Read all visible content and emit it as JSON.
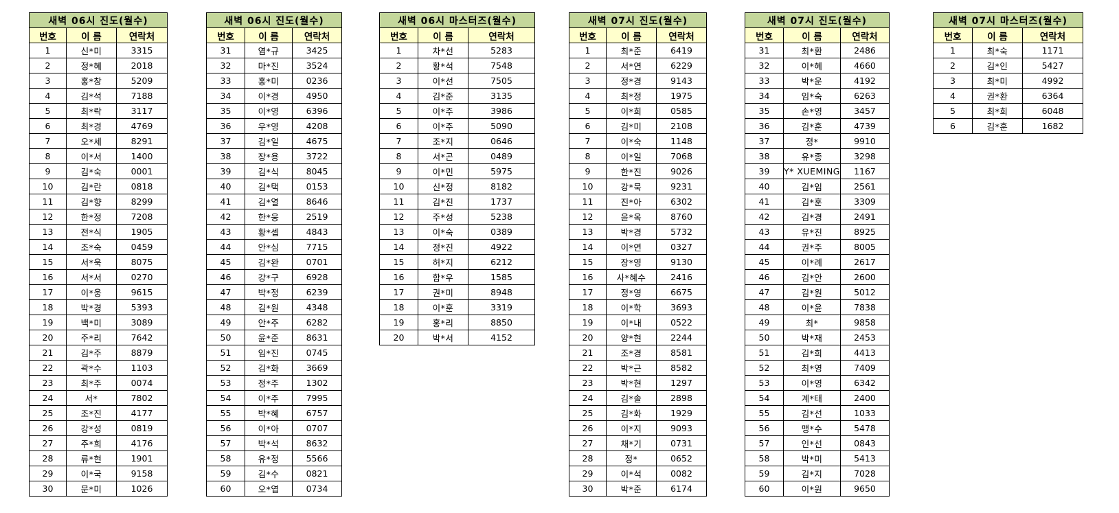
{
  "colors": {
    "title_bg": "#c4d79b",
    "header_bg": "#ffffcc",
    "border": "#000000"
  },
  "columns": [
    "번호",
    "이 름",
    "연락처"
  ],
  "tables": [
    {
      "title": "새벽 06시 진도(월수)",
      "rows": [
        [
          "1",
          "신*미",
          "3315"
        ],
        [
          "2",
          "정*혜",
          "2018"
        ],
        [
          "3",
          "홍*창",
          "5209"
        ],
        [
          "4",
          "김*석",
          "7188"
        ],
        [
          "5",
          "최*락",
          "3117"
        ],
        [
          "6",
          "최*경",
          "4769"
        ],
        [
          "7",
          "오*세",
          "8291"
        ],
        [
          "8",
          "이*서",
          "1400"
        ],
        [
          "9",
          "김*숙",
          "0001"
        ],
        [
          "10",
          "김*란",
          "0818"
        ],
        [
          "11",
          "김*향",
          "8299"
        ],
        [
          "12",
          "한*정",
          "7208"
        ],
        [
          "13",
          "전*식",
          "1905"
        ],
        [
          "14",
          "조*숙",
          "0459"
        ],
        [
          "15",
          "서*욱",
          "8075"
        ],
        [
          "16",
          "서*서",
          "0270"
        ],
        [
          "17",
          "이*웅",
          "9615"
        ],
        [
          "18",
          "박*경",
          "5393"
        ],
        [
          "19",
          "백*미",
          "3089"
        ],
        [
          "20",
          "주*리",
          "7642"
        ],
        [
          "21",
          "김*주",
          "8879"
        ],
        [
          "22",
          "곽*수",
          "1103"
        ],
        [
          "23",
          "최*주",
          "0074"
        ],
        [
          "24",
          "서*",
          "7802"
        ],
        [
          "25",
          "조*진",
          "4177"
        ],
        [
          "26",
          "강*성",
          "0819"
        ],
        [
          "27",
          "주*희",
          "4176"
        ],
        [
          "28",
          "류*현",
          "1901"
        ],
        [
          "29",
          "이*국",
          "9158"
        ],
        [
          "30",
          "문*미",
          "1026"
        ]
      ]
    },
    {
      "title": "새벽 06시 진도(월수)",
      "rows": [
        [
          "31",
          "염*규",
          "3425"
        ],
        [
          "32",
          "마*진",
          "3524"
        ],
        [
          "33",
          "홍*미",
          "0236"
        ],
        [
          "34",
          "이*경",
          "4950"
        ],
        [
          "35",
          "이*영",
          "6396"
        ],
        [
          "36",
          "우*영",
          "4208"
        ],
        [
          "37",
          "김*일",
          "4675"
        ],
        [
          "38",
          "장*용",
          "3722"
        ],
        [
          "39",
          "김*식",
          "8045"
        ],
        [
          "40",
          "김*택",
          "0153"
        ],
        [
          "41",
          "김*열",
          "8646"
        ],
        [
          "42",
          "한*웅",
          "2519"
        ],
        [
          "43",
          "황*셉",
          "4843"
        ],
        [
          "44",
          "안*심",
          "7715"
        ],
        [
          "45",
          "김*완",
          "0701"
        ],
        [
          "46",
          "강*구",
          "6928"
        ],
        [
          "47",
          "박*정",
          "6239"
        ],
        [
          "48",
          "김*원",
          "4348"
        ],
        [
          "49",
          "안*주",
          "6282"
        ],
        [
          "50",
          "윤*준",
          "8631"
        ],
        [
          "51",
          "임*진",
          "0745"
        ],
        [
          "52",
          "김*화",
          "3669"
        ],
        [
          "53",
          "정*주",
          "1302"
        ],
        [
          "54",
          "이*주",
          "7995"
        ],
        [
          "55",
          "박*혜",
          "6757"
        ],
        [
          "56",
          "이*아",
          "0707"
        ],
        [
          "57",
          "박*석",
          "8632"
        ],
        [
          "58",
          "유*정",
          "5566"
        ],
        [
          "59",
          "김*수",
          "0821"
        ],
        [
          "60",
          "오*엽",
          "0734"
        ]
      ]
    },
    {
      "title": "새벽 06시 마스터즈(월수)",
      "rows": [
        [
          "1",
          "차*선",
          "5283"
        ],
        [
          "2",
          "황*석",
          "7548"
        ],
        [
          "3",
          "이*선",
          "7505"
        ],
        [
          "4",
          "김*준",
          "3135"
        ],
        [
          "5",
          "이*주",
          "3986"
        ],
        [
          "6",
          "이*주",
          "5090"
        ],
        [
          "7",
          "조*지",
          "0646"
        ],
        [
          "8",
          "서*곤",
          "0489"
        ],
        [
          "9",
          "이*민",
          "5975"
        ],
        [
          "10",
          "신*정",
          "8182"
        ],
        [
          "11",
          "김*진",
          "1737"
        ],
        [
          "12",
          "주*성",
          "5238"
        ],
        [
          "13",
          "이*숙",
          "0389"
        ],
        [
          "14",
          "정*진",
          "4922"
        ],
        [
          "15",
          "허*지",
          "6212"
        ],
        [
          "16",
          "함*우",
          "1585"
        ],
        [
          "17",
          "권*미",
          "8948"
        ],
        [
          "18",
          "이*훈",
          "3319"
        ],
        [
          "19",
          "홍*리",
          "8850"
        ],
        [
          "20",
          "박*서",
          "4152"
        ]
      ]
    },
    {
      "title": "새벽 07시 진도(월수)",
      "rows": [
        [
          "1",
          "최*준",
          "6419"
        ],
        [
          "2",
          "서*연",
          "6229"
        ],
        [
          "3",
          "정*경",
          "9143"
        ],
        [
          "4",
          "최*정",
          "1975"
        ],
        [
          "5",
          "이*희",
          "0585"
        ],
        [
          "6",
          "김*미",
          "2108"
        ],
        [
          "7",
          "이*숙",
          "1148"
        ],
        [
          "8",
          "이*일",
          "7068"
        ],
        [
          "9",
          "한*진",
          "9026"
        ],
        [
          "10",
          "강*묵",
          "9231"
        ],
        [
          "11",
          "진*아",
          "6302"
        ],
        [
          "12",
          "윤*옥",
          "8760"
        ],
        [
          "13",
          "박*경",
          "5732"
        ],
        [
          "14",
          "이*연",
          "0327"
        ],
        [
          "15",
          "장*영",
          "9130"
        ],
        [
          "16",
          "사*혜수",
          "2416"
        ],
        [
          "17",
          "정*영",
          "6675"
        ],
        [
          "18",
          "이*학",
          "3693"
        ],
        [
          "19",
          "이*내",
          "0522"
        ],
        [
          "20",
          "양*현",
          "2244"
        ],
        [
          "21",
          "조*경",
          "8581"
        ],
        [
          "22",
          "박*근",
          "8582"
        ],
        [
          "23",
          "박*현",
          "1297"
        ],
        [
          "24",
          "김*솔",
          "2898"
        ],
        [
          "25",
          "김*화",
          "1929"
        ],
        [
          "26",
          "이*지",
          "9093"
        ],
        [
          "27",
          "채*기",
          "0731"
        ],
        [
          "28",
          "정*",
          "0652"
        ],
        [
          "29",
          "이*석",
          "0082"
        ],
        [
          "30",
          "박*준",
          "6174"
        ]
      ]
    },
    {
      "title": "새벽 07시 진도(월수)",
      "rows": [
        [
          "31",
          "최*환",
          "2486"
        ],
        [
          "32",
          "이*혜",
          "4660"
        ],
        [
          "33",
          "박*운",
          "4192"
        ],
        [
          "34",
          "임*숙",
          "6263"
        ],
        [
          "35",
          "손*영",
          "3457"
        ],
        [
          "36",
          "김*훈",
          "4739"
        ],
        [
          "37",
          "정*",
          "9910"
        ],
        [
          "38",
          "유*종",
          "3298"
        ],
        [
          "39",
          "Y* XUEMING",
          "1167"
        ],
        [
          "40",
          "김*임",
          "2561"
        ],
        [
          "41",
          "김*훈",
          "3309"
        ],
        [
          "42",
          "김*경",
          "2491"
        ],
        [
          "43",
          "유*진",
          "8925"
        ],
        [
          "44",
          "권*주",
          "8005"
        ],
        [
          "45",
          "이*례",
          "2617"
        ],
        [
          "46",
          "김*안",
          "2600"
        ],
        [
          "47",
          "김*원",
          "5012"
        ],
        [
          "48",
          "이*윤",
          "7838"
        ],
        [
          "49",
          "최*",
          "9858"
        ],
        [
          "50",
          "박*재",
          "2453"
        ],
        [
          "51",
          "김*희",
          "4413"
        ],
        [
          "52",
          "최*영",
          "7409"
        ],
        [
          "53",
          "이*영",
          "6342"
        ],
        [
          "54",
          "계*태",
          "2400"
        ],
        [
          "55",
          "김*선",
          "1033"
        ],
        [
          "56",
          "맹*수",
          "5478"
        ],
        [
          "57",
          "인*선",
          "0843"
        ],
        [
          "58",
          "박*미",
          "5413"
        ],
        [
          "59",
          "김*지",
          "7028"
        ],
        [
          "60",
          "이*원",
          "9650"
        ]
      ]
    },
    {
      "title": "새벽 07시 마스터즈(월수)",
      "rows": [
        [
          "1",
          "최*숙",
          "1171"
        ],
        [
          "2",
          "김*인",
          "5427"
        ],
        [
          "3",
          "최*미",
          "4992"
        ],
        [
          "4",
          "권*환",
          "6364"
        ],
        [
          "5",
          "최*희",
          "6048"
        ],
        [
          "6",
          "김*훈",
          "1682"
        ]
      ]
    }
  ]
}
